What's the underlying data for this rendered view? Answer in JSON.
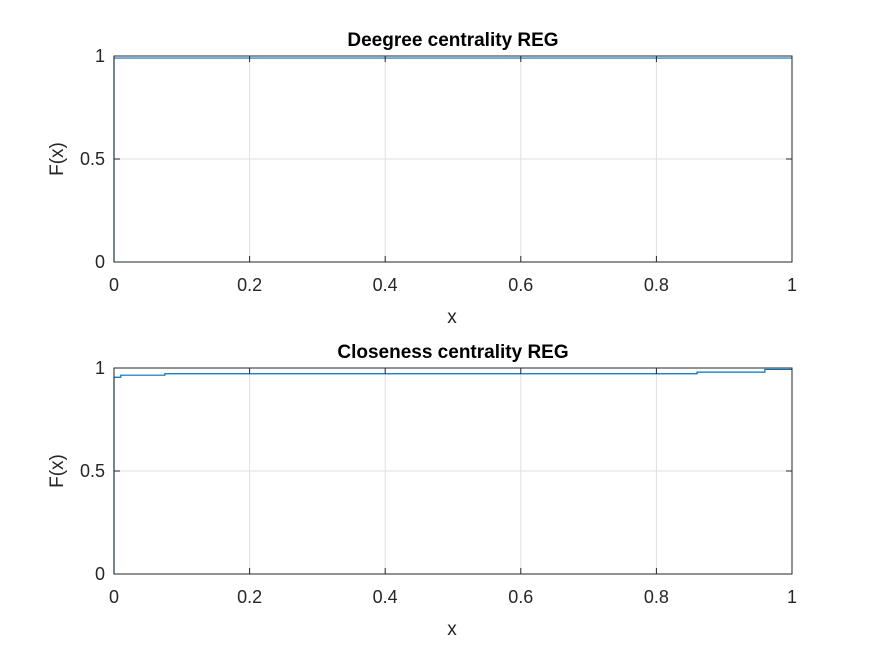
{
  "colors": {
    "background": "#ffffff",
    "axis": "#262626",
    "grid": "#dfdfdf",
    "line": "#0072bd"
  },
  "chart_data": [
    {
      "type": "line",
      "title": "Deegree centrality REG",
      "xlabel": "x",
      "ylabel": "F(x)",
      "xlim": [
        0,
        1
      ],
      "ylim": [
        0,
        1
      ],
      "xticks": [
        0,
        0.2,
        0.4,
        0.6,
        0.8,
        1
      ],
      "xtick_labels": [
        "0",
        "0.2",
        "0.4",
        "0.6",
        "0.8",
        "1"
      ],
      "yticks": [
        0,
        0.5,
        1
      ],
      "ytick_labels": [
        "0",
        "0.5",
        "1"
      ],
      "grid": true,
      "series": [
        {
          "step": true,
          "x": [
            0,
            0,
            1
          ],
          "y": [
            0,
            0.99,
            0.99
          ]
        }
      ]
    },
    {
      "type": "line",
      "title": "Closeness centrality REG",
      "xlabel": "x",
      "ylabel": "F(x)",
      "xlim": [
        0,
        1
      ],
      "ylim": [
        0,
        1
      ],
      "xticks": [
        0,
        0.2,
        0.4,
        0.6,
        0.8,
        1
      ],
      "xtick_labels": [
        "0",
        "0.2",
        "0.4",
        "0.6",
        "0.8",
        "1"
      ],
      "yticks": [
        0,
        0.5,
        1
      ],
      "ytick_labels": [
        "0",
        "0.5",
        "1"
      ],
      "grid": true,
      "series": [
        {
          "step": true,
          "x": [
            0,
            0,
            0.01,
            0.075,
            0.86,
            0.96,
            1
          ],
          "y": [
            0,
            0.955,
            0.965,
            0.972,
            0.98,
            0.993,
            0.993
          ]
        }
      ]
    }
  ]
}
